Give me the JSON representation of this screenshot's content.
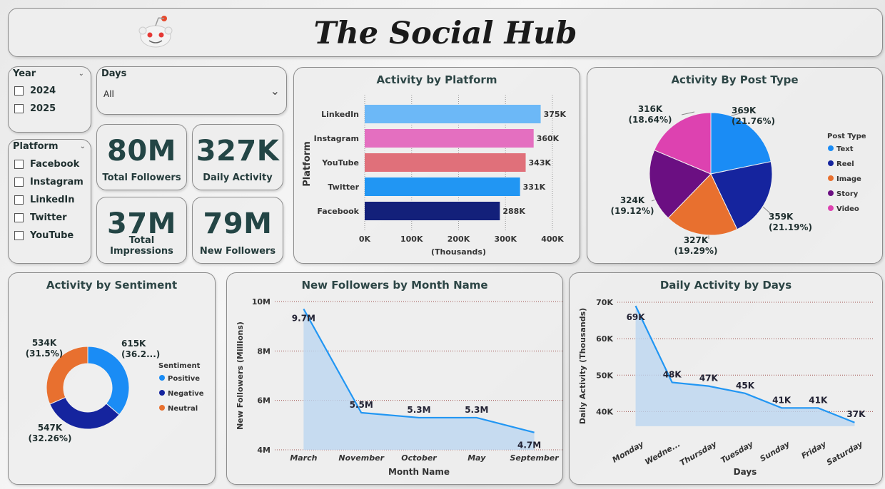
{
  "header": {
    "title": "The Social Hub"
  },
  "slicers": {
    "year": {
      "title": "Year",
      "options": [
        "2024",
        "2025"
      ]
    },
    "days": {
      "title": "Days",
      "value": "All"
    },
    "platform": {
      "title": "Platform",
      "options": [
        "Facebook",
        "Instagram",
        "LinkedIn",
        "Twitter",
        "YouTube"
      ]
    }
  },
  "kpis": [
    {
      "value": "80M",
      "label": "Total Followers"
    },
    {
      "value": "327K",
      "label": "Daily Activity"
    },
    {
      "value": "37M",
      "label": "Total Impressions"
    },
    {
      "value": "79M",
      "label": "New Followers"
    }
  ],
  "chart_data": [
    {
      "id": "platform",
      "type": "bar",
      "title": "Activity by Platform",
      "ylabel": "Platform",
      "xlabel": "(Thousands)",
      "categories": [
        "LinkedIn",
        "Instagram",
        "YouTube",
        "Twitter",
        "Facebook"
      ],
      "values": [
        375,
        360,
        343,
        331,
        288
      ],
      "data_labels": [
        "375K",
        "360K",
        "343K",
        "331K",
        "288K"
      ],
      "colors": [
        "#6cb8f7",
        "#e46fc0",
        "#e0707a",
        "#2196f3",
        "#13207a"
      ],
      "xticks": [
        "0K",
        "100K",
        "200K",
        "300K",
        "400K"
      ],
      "xlim": [
        0,
        400
      ]
    },
    {
      "id": "post_type",
      "type": "pie",
      "title": "Activity By Post Type",
      "legend_title": "Post Type",
      "categories": [
        "Text",
        "Reel",
        "Image",
        "Story",
        "Video"
      ],
      "values": [
        369,
        359,
        327,
        324,
        316
      ],
      "data_labels": [
        "369K (21.76%)",
        "359K (21.19%)",
        "327K (19.29%)",
        "324K (19.12%)",
        "316K (18.64%)"
      ],
      "colors": [
        "#1a8cf5",
        "#15249e",
        "#e8702f",
        "#6b0f82",
        "#dd42b0"
      ]
    },
    {
      "id": "sentiment",
      "type": "pie",
      "title": "Activity by Sentiment",
      "legend_title": "Sentiment",
      "categories": [
        "Positive",
        "Negative",
        "Neutral"
      ],
      "values": [
        615,
        547,
        534
      ],
      "data_labels": [
        "615K (36.2...)",
        "547K (32.26%)",
        "534K (31.5%)"
      ],
      "colors": [
        "#1a8cf5",
        "#15249e",
        "#e8702f"
      ]
    },
    {
      "id": "monthly",
      "type": "area",
      "title": "New Followers by Month Name",
      "xlabel": "Month Name",
      "ylabel": "New Followers (Millions)",
      "categories": [
        "March",
        "November",
        "October",
        "May",
        "September"
      ],
      "values": [
        9.7,
        5.5,
        5.3,
        5.3,
        4.7
      ],
      "data_labels": [
        "9.7M",
        "5.5M",
        "5.3M",
        "5.3M",
        "4.7M"
      ],
      "yticks": [
        "4M",
        "6M",
        "8M",
        "10M"
      ],
      "ylim": [
        4,
        10
      ],
      "color": "#2196f3"
    },
    {
      "id": "daily",
      "type": "area",
      "title": "Daily Activity by Days",
      "xlabel": "Days",
      "ylabel": "Daily Activity (Thousands)",
      "categories": [
        "Monday",
        "Wedne...",
        "Thursday",
        "Tuesday",
        "Sunday",
        "Friday",
        "Saturday"
      ],
      "values": [
        69,
        48,
        47,
        45,
        41,
        41,
        37
      ],
      "data_labels": [
        "69K",
        "48K",
        "47K",
        "45K",
        "41K",
        "41K",
        "37K"
      ],
      "yticks": [
        "40K",
        "50K",
        "60K",
        "70K"
      ],
      "ylim": [
        35,
        70
      ],
      "color": "#2196f3"
    }
  ]
}
